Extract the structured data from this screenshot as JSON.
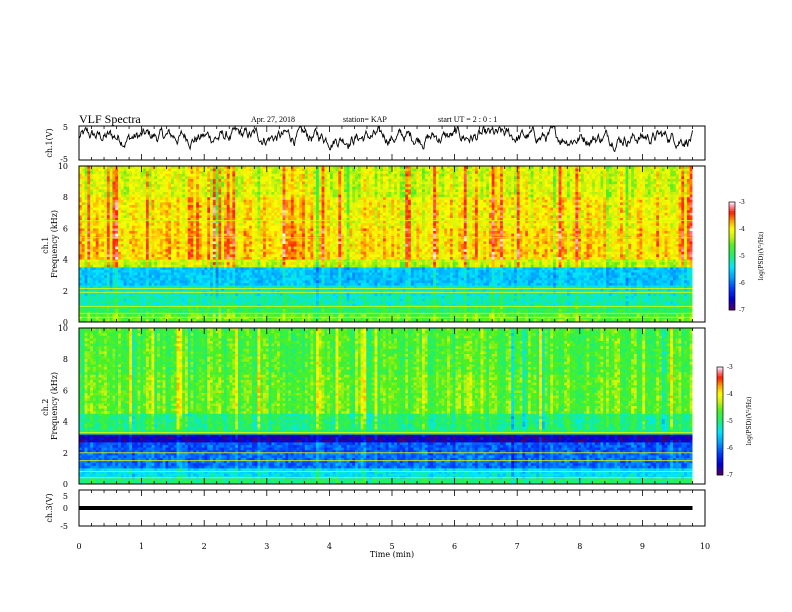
{
  "header": {
    "title": "VLF Spectra",
    "date": "Apr. 27, 2018",
    "station": "station= KAP",
    "start": "start  UT =   2  : 0   : 1"
  },
  "colors": {
    "waveform": "#000000",
    "colormap": [
      "#5a0060",
      "#0000d0",
      "#0040ff",
      "#00a0ff",
      "#00e8ff",
      "#20f070",
      "#40f020",
      "#c8f010",
      "#ffff00",
      "#ffa000",
      "#ff2000",
      "#ff90a0",
      "#ffffff"
    ]
  },
  "chart_data": [
    {
      "type": "line",
      "name": "ch1-waveform",
      "ylabel": "ch.1(V)",
      "ylim": [
        -5,
        5
      ],
      "yticks": [
        "5",
        "-5"
      ],
      "xlim": [
        0,
        10
      ],
      "mean": 1.8,
      "amplitude_range": [
        -2.5,
        4.8
      ],
      "signal_end": 9.8
    },
    {
      "type": "heatmap",
      "name": "ch1-spectrogram",
      "ylabel": "ch.1\nFrequency (kHz)",
      "ylim": [
        0,
        10
      ],
      "yticks": [
        "0",
        "2",
        "4",
        "6",
        "8",
        "10"
      ],
      "xlim": [
        0,
        10
      ],
      "signal_end": 9.8,
      "colorbar": {
        "label": "log(PSD)(V²/Hz)",
        "range": [
          -7,
          -3
        ],
        "ticks": [
          "-3",
          "-4",
          "-5",
          "-6",
          "-7"
        ]
      },
      "bands": [
        {
          "from": 0.0,
          "to": 0.5,
          "level": -4.6
        },
        {
          "from": 0.5,
          "to": 1.0,
          "level": -4.9
        },
        {
          "from": 1.0,
          "to": 1.7,
          "level": -5.2
        },
        {
          "from": 1.7,
          "to": 2.3,
          "level": -5.3
        },
        {
          "from": 2.3,
          "to": 3.5,
          "level": -5.6
        },
        {
          "from": 3.5,
          "to": 4.0,
          "level": -4.3
        },
        {
          "from": 4.0,
          "to": 6.0,
          "level": -3.9
        },
        {
          "from": 6.0,
          "to": 8.0,
          "level": -4.0
        },
        {
          "from": 8.0,
          "to": 10.0,
          "level": -4.2
        }
      ],
      "lines": [
        0.3,
        0.55,
        1.0,
        1.9,
        2.15,
        3.9,
        5.4,
        6.5
      ]
    },
    {
      "type": "heatmap",
      "name": "ch2-spectrogram",
      "ylabel": "ch.2\nFrequency (kHz)",
      "ylim": [
        0,
        10
      ],
      "yticks": [
        "0",
        "2",
        "4",
        "6",
        "8",
        "10"
      ],
      "xlim": [
        0,
        10
      ],
      "signal_end": 9.8,
      "colorbar": {
        "label": "log(PSD)(V²/Hz)",
        "range": [
          -7,
          -3
        ],
        "ticks": [
          "-3",
          "-4",
          "-5",
          "-6",
          "-7"
        ]
      },
      "bands": [
        {
          "from": 0.0,
          "to": 0.4,
          "level": -5.0
        },
        {
          "from": 0.4,
          "to": 1.0,
          "level": -5.4
        },
        {
          "from": 1.0,
          "to": 2.0,
          "level": -6.0
        },
        {
          "from": 2.0,
          "to": 2.6,
          "level": -6.1
        },
        {
          "from": 2.6,
          "to": 3.2,
          "level": -6.7
        },
        {
          "from": 3.2,
          "to": 4.5,
          "level": -5.0
        },
        {
          "from": 4.5,
          "to": 7.0,
          "level": -4.6
        },
        {
          "from": 7.0,
          "to": 10.0,
          "level": -4.7
        }
      ],
      "lines": [
        0.4,
        0.8,
        1.5,
        2.0,
        3.3
      ]
    },
    {
      "type": "line",
      "name": "ch3-waveform",
      "ylabel": "ch.3(V)",
      "ylim": [
        -5,
        5
      ],
      "yticks": [
        "5",
        "0",
        "-5"
      ],
      "xlim": [
        0,
        10
      ],
      "mean": 0.0,
      "signal_end": 9.8
    }
  ],
  "xaxis": {
    "label": "Time  (min)",
    "ticks": [
      "0",
      "1",
      "2",
      "3",
      "4",
      "5",
      "6",
      "7",
      "8",
      "9",
      "10"
    ]
  }
}
